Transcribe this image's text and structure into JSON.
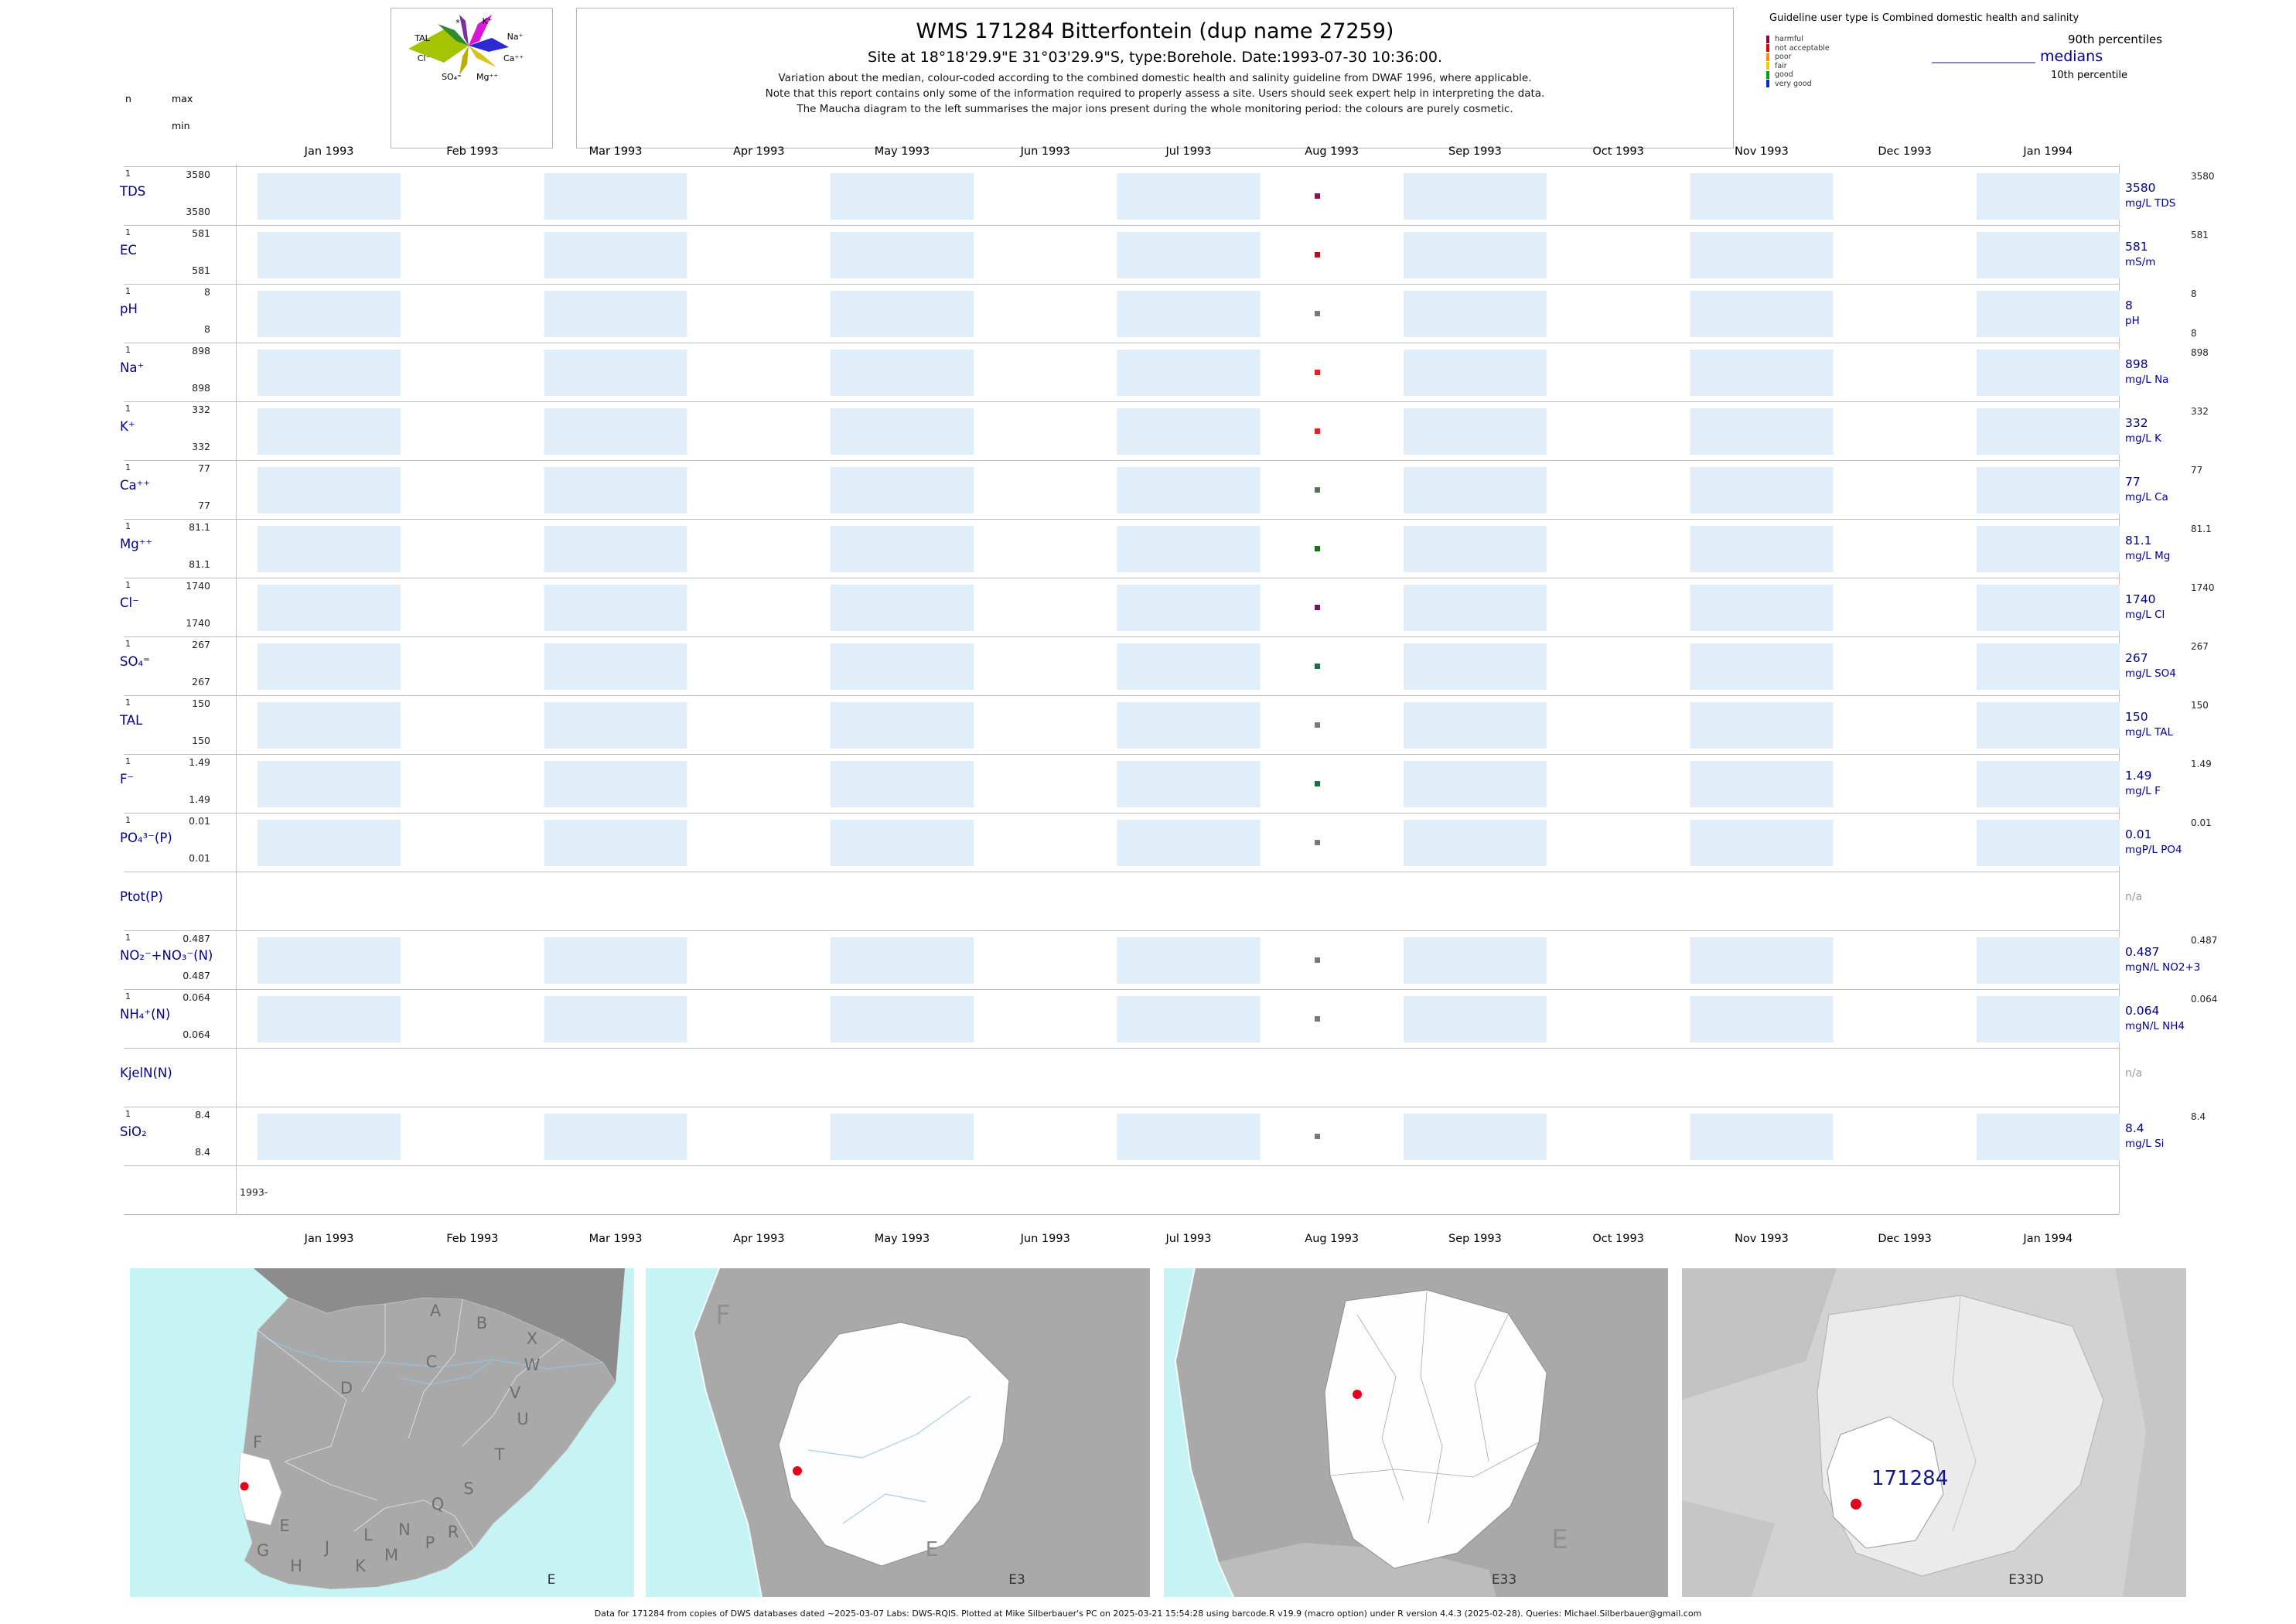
{
  "header": {
    "n_label": "n",
    "max_label": "max",
    "min_label": "min",
    "title": "WMS 171284  Bitterfontein (dup name 27259)",
    "site_line": "Site at 18°18'29.9\"E 31°03'29.9\"S, type:Borehole. Date:1993-07-30 10:36:00.",
    "note1": "Variation about the median,  colour-coded according to the combined domestic health and salinity guideline from DWAF 1996, where applicable.",
    "note2": "Note that this report contains only some of the information required to properly assess a site. Users should seek expert help in interpreting the data.",
    "note3": "The Maucha diagram to the left summarises the major ions present during the whole monitoring period: the colours are purely cosmetic.",
    "guideline_user_line": "Guideline user type is Combined domestic health and salinity",
    "p90_label": "90th percentiles",
    "medians_label": "medians",
    "p10_label": "10th percentile",
    "classes": [
      {
        "label": "harmful",
        "color": "#93003a"
      },
      {
        "label": "not acceptable",
        "color": "#e10000"
      },
      {
        "label": "poor",
        "color": "#ff8c00"
      },
      {
        "label": "fair",
        "color": "#e0d400"
      },
      {
        "label": "good",
        "color": "#00a018"
      },
      {
        "label": "very good",
        "color": "#0030c8"
      }
    ]
  },
  "maucha": {
    "labels": [
      "*",
      "K⁺",
      "TAL",
      "Na⁺",
      "Cl⁻",
      "Ca⁺⁺",
      "SO₄⁼",
      "Mg⁺⁺"
    ]
  },
  "chart_data": {
    "type": "time-series single-sample barcode plot",
    "x_ticks": [
      "Jan 1993",
      "Feb 1993",
      "Mar 1993",
      "Apr 1993",
      "May 1993",
      "Jun 1993",
      "Jul 1993",
      "Aug 1993",
      "Sep 1993",
      "Oct 1993",
      "Nov 1993",
      "Dec 1993",
      "Jan 1994"
    ],
    "x_range_label": "1993-",
    "sample_date": "1993-07-30",
    "sample_x_fraction": 0.575,
    "rows": [
      {
        "param": "TDS",
        "n": "1",
        "max": "3580",
        "min": "3580",
        "p90": "3580",
        "median": "3580",
        "unit": "mg/L TDS",
        "value": 3580,
        "dot_color": "#7d1b4f"
      },
      {
        "param": "EC",
        "n": "1",
        "max": "581",
        "min": "581",
        "p90": "581",
        "median": "581",
        "unit": "mS/m",
        "value": 581,
        "dot_color": "#9b1c1c"
      },
      {
        "param": "pH",
        "n": "1",
        "max": "8",
        "min": "8",
        "p90": "8",
        "median": "8",
        "p10": "8",
        "unit": "pH",
        "value": 8,
        "dot_color": "#787878"
      },
      {
        "param": "Na⁺",
        "n": "1",
        "max": "898",
        "min": "898",
        "p90": "898",
        "median": "898",
        "unit": "mg/L Na",
        "value": 898,
        "dot_color": "#d62728"
      },
      {
        "param": "K⁺",
        "n": "1",
        "max": "332",
        "min": "332",
        "p90": "332",
        "median": "332",
        "unit": "mg/L K",
        "value": 332,
        "dot_color": "#d62728"
      },
      {
        "param": "Ca⁺⁺",
        "n": "1",
        "max": "77",
        "min": "77",
        "p90": "77",
        "median": "77",
        "unit": "mg/L Ca",
        "value": 77,
        "dot_color": "#5d6e5d"
      },
      {
        "param": "Mg⁺⁺",
        "n": "1",
        "max": "81.1",
        "min": "81.1",
        "p90": "81.1",
        "median": "81.1",
        "unit": "mg/L Mg",
        "value": 81.1,
        "dot_color": "#1f6e1f"
      },
      {
        "param": "Cl⁻",
        "n": "1",
        "max": "1740",
        "min": "1740",
        "p90": "1740",
        "median": "1740",
        "unit": "mg/L Cl",
        "value": 1740,
        "dot_color": "#6a1b5e"
      },
      {
        "param": "SO₄⁼",
        "n": "1",
        "max": "267",
        "min": "267",
        "p90": "267",
        "median": "267",
        "unit": "mg/L SO4",
        "value": 267,
        "dot_color": "#1f6e46"
      },
      {
        "param": "TAL",
        "n": "1",
        "max": "150",
        "min": "150",
        "p90": "150",
        "median": "150",
        "unit": "mg/L TAL",
        "value": 150,
        "dot_color": "#787878"
      },
      {
        "param": "F⁻",
        "n": "1",
        "max": "1.49",
        "min": "1.49",
        "p90": "1.49",
        "median": "1.49",
        "unit": "mg/L F",
        "value": 1.49,
        "dot_color": "#1f6e46"
      },
      {
        "param": "PO₄³⁻(P)",
        "n": "1",
        "max": "0.01",
        "min": "0.01",
        "p90": "0.01",
        "median": "0.01",
        "unit": "mgP/L PO4",
        "value": 0.01,
        "dot_color": "#787878"
      },
      {
        "param": "Ptot(P)",
        "no_data": true,
        "na": "n/a"
      },
      {
        "param": "NO₂⁻+NO₃⁻(N)",
        "n": "1",
        "max": "0.487",
        "min": "0.487",
        "p90": "0.487",
        "median": "0.487",
        "unit": "mgN/L NO2+3",
        "value": 0.487,
        "dot_color": "#787878"
      },
      {
        "param": "NH₄⁺(N)",
        "n": "1",
        "max": "0.064",
        "min": "0.064",
        "p90": "0.064",
        "median": "0.064",
        "unit": "mgN/L NH4",
        "value": 0.064,
        "dot_color": "#787878"
      },
      {
        "param": "KjelN(N)",
        "no_data": true,
        "na": "n/a"
      },
      {
        "param": "SiO₂",
        "n": "1",
        "max": "8.4",
        "min": "8.4",
        "p90": "8.4",
        "median": "8.4",
        "unit": "mg/L Si",
        "value": 8.4,
        "dot_color": "#787878"
      }
    ]
  },
  "maps": {
    "panel1": {
      "code": "E",
      "letters": [
        "A",
        "B",
        "X",
        "C",
        "W",
        "D",
        "V",
        "U",
        "T",
        "S",
        "Q",
        "R",
        "P",
        "N",
        "M",
        "L",
        "K",
        "J",
        "H",
        "G",
        "F",
        "E"
      ]
    },
    "panel2": {
      "code": "E3",
      "coast_letter": "F",
      "region_letter": "E"
    },
    "panel3": {
      "code": "E33",
      "region_letter": "E"
    },
    "panel4": {
      "code": "E33D",
      "site_label": "171284"
    }
  },
  "footer": {
    "credit": "Data for 171284 from copies of DWS databases dated ~2025-03-07 Labs: DWS-RQIS. Plotted at Mike Silberbauer's PC on 2025-03-21 15:54:28 using barcode.R v19.9 (macro option) under R version 4.4.3 (2025-02-28). Queries: Michael.Silberbauer@gmail.com"
  }
}
